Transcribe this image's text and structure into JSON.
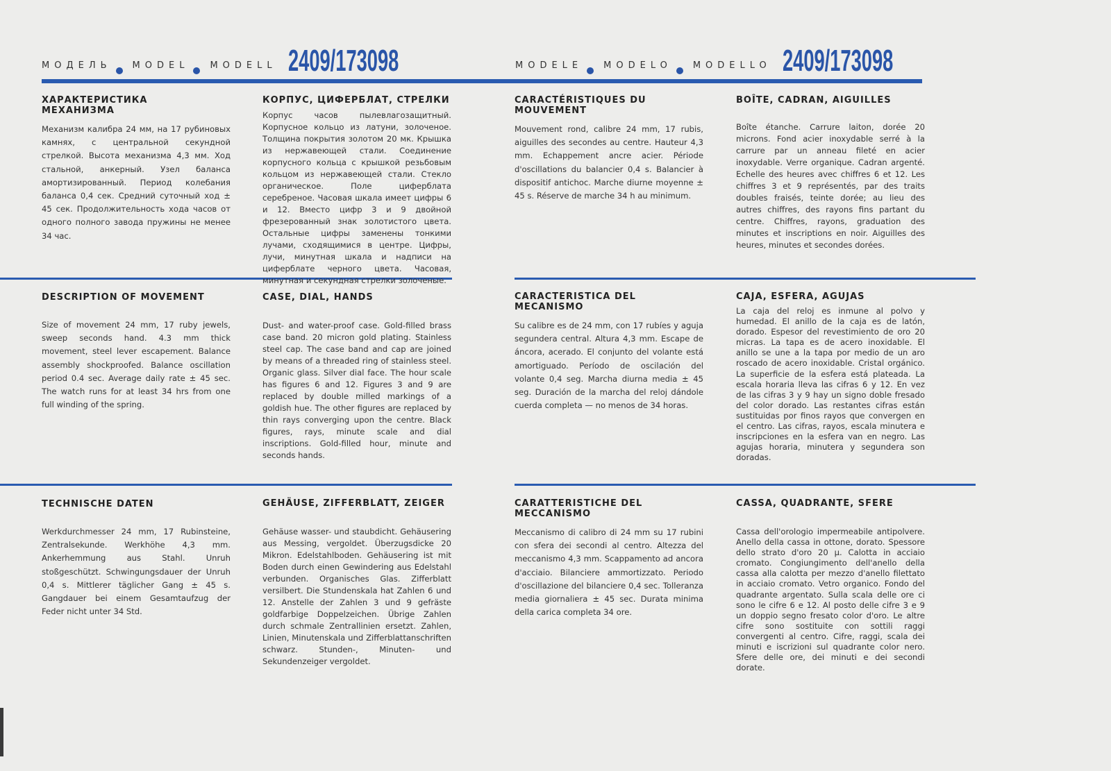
{
  "header_left": {
    "label_parts": [
      "МОДЕЛЬ",
      "MODEL",
      "MODELL"
    ],
    "number": "2409/173098"
  },
  "header_right": {
    "label_parts": [
      "MODELE",
      "MODELO",
      "MODELLO"
    ],
    "number": "2409/173098"
  },
  "accent_color": "#2a55a8",
  "sections": {
    "ru_movement": {
      "title": "ХАРАКТЕРИСТИКА МЕХАНИЗМА",
      "text": "Механизм калибра 24 мм, на 17 рубиновых камнях, с центральной секундной стрелкой. Высота механизма 4,3 мм. Ход стальной, анкерный. Узел баланса амортизированный. Период колебания баланса 0,4 сек. Средний суточный ход ± 45 сек. Продолжительность хода часов от одного полного завода пружины не менее 34 час."
    },
    "ru_case": {
      "title": "КОРПУС, ЦИФЕРБЛАТ, СТРЕЛКИ",
      "text": "Корпус часов пылевлагозащитный. Корпусное кольцо из латуни, золоченое. Толщина покрытия золотом 20 мк. Крышка из нержавеющей стали. Соединение корпусного кольца с крышкой резьбовым кольцом из нержавеющей стали. Стекло органическое. Поле циферблата серебреное. Часовая шкала имеет цифры 6 и 12. Вместо цифр 3 и 9 двойной фрезерованный знак золотистого цвета. Остальные цифры заменены тонкими лучами, сходящимися в центре. Цифры, лучи, минутная шкала и надписи на циферблате черного цвета. Часовая, минутная и секундная стрелки золоченые."
    },
    "fr_movement": {
      "title": "CARACTÉRISTIQUES DU MOUVEMENT",
      "text": "Mouvement rond, calibre 24 mm, 17 rubis, aiguilles des secondes au centre. Hauteur 4,3 mm. Echappement ancre acier. Période d'oscillations du balancier 0,4 s. Balancier à dispositif antichoc. Marche diurne moyenne ± 45 s. Réserve de marche 34 h au minimum."
    },
    "fr_case": {
      "title": "BOÎTE, CADRAN, AIGUILLES",
      "text": "Boîte étanche. Carrure laiton, dorée 20 microns. Fond acier inoxydable serré à la carrure par un anneau fileté en acier inoxydable. Verre organique. Cadran argenté. Echelle des heures avec chiffres 6 et 12. Les chiffres 3 et 9 représentés, par des traits doubles fraisés, teinte dorée; au lieu des autres chiffres, des rayons fins partant du centre. Chiffres, rayons, graduation des minutes et inscriptions en noir. Aiguilles des heures, minutes et secondes dorées."
    },
    "en_movement": {
      "title": "DESCRIPTION OF MOVEMENT",
      "text": "Size of movement 24 mm, 17 ruby jewels, sweep seconds hand. 4.3 mm thick movement, steel lever escapement. Balance assembly shockproofed. Balance oscillation period 0.4 sec. Average daily rate ± 45 sec. The watch runs for at least 34 hrs from one full winding of the spring."
    },
    "en_case": {
      "title": "CASE, DIAL, HANDS",
      "text": "Dust- and water-proof case. Gold-filled brass case band. 20 micron gold plating. Stainless steel cap. The case band and cap are joined by means of a threaded ring of stainless steel. Organic glass. Silver dial face. The hour scale has figures 6 and 12. Figures 3 and 9 are replaced by double milled markings of a goldish hue. The other figures are replaced by thin rays converging upon the centre. Black figures, rays, minute scale and dial inscriptions. Gold-filled hour, minute and seconds hands."
    },
    "es_movement": {
      "title": "CARACTERISTICA DEL MECANISMO",
      "text": "Su calibre es de 24 mm, con 17 rubíes y aguja segundera central. Altura 4,3 mm. Escape de áncora, acerado. El conjunto del volante está amortiguado. Período de oscilación del volante 0,4 seg. Marcha diurna media ± 45 seg. Duración de la marcha del reloj dándole cuerda completa — no menos de 34 horas."
    },
    "es_case": {
      "title": "CAJA, ESFERA, AGUJAS",
      "text": "La caja del reloj es inmune al polvo y humedad. El anillo de la caja es de latón, dorado. Espesor del revestimiento de oro 20 micras. La tapa es de acero inoxidable. El anillo se une a la tapa por medio de un aro roscado de acero inoxidable. Cristal orgánico. La superficie de la esfera está plateada. La escala horaria lleva las cifras 6 y 12. En vez de las cifras 3 y 9 hay un signo doble fresado del color dorado. Las restantes cifras están sustituidas por finos rayos que convergen en el centro. Las cifras, rayos, escala minutera e inscripciones en la esfera van en negro. Las agujas horaria, minutera y segundera son doradas."
    },
    "de_movement": {
      "title": "TECHNISCHE DATEN",
      "text": "Werkdurchmesser 24 mm, 17 Rubinsteine, Zentralsekunde. Werkhöhe 4,3 mm. Ankerhemmung aus Stahl. Unruh stoßgeschützt. Schwingungsdauer der Unruh 0,4 s. Mittlerer täglicher Gang ± 45 s. Gangdauer bei einem Gesamtaufzug der Feder nicht unter 34 Std."
    },
    "de_case": {
      "title": "GEHÄUSE, ZIFFERBLATT, ZEIGER",
      "text": "Gehäuse wasser- und staubdicht. Gehäusering aus Messing, vergoldet. Überzugsdicke 20 Mikron. Edelstahlboden. Gehäusering ist mit Boden durch einen Gewindering aus Edelstahl verbunden. Organisches Glas. Zifferblatt versilbert. Die Stundenskala hat Zahlen 6 und 12. Anstelle der Zahlen 3 und 9 gefräste goldfarbige Doppelzeichen. Übrige Zahlen durch schmale Zentrallinien ersetzt. Zahlen, Linien, Minutenskala und Zifferblattanschriften schwarz. Stunden-, Minuten- und Sekundenzeiger vergoldet."
    },
    "it_movement": {
      "title": "CARATTERISTICHE DEL MECCANISMO",
      "text": "Meccanismo di calibro di 24 mm su 17 rubini con sfera dei secondi al centro. Altezza del meccanismo 4,3 mm. Scappamento ad ancora d'acciaio. Bilanciere ammortizzato. Periodo d'oscillazione del bilanciere 0,4 sec. Tolleranza media giornaliera ± 45 sec. Durata minima della carica completa 34 ore."
    },
    "it_case": {
      "title": "CASSA, QUADRANTE, SFERE",
      "text": "Cassa dell'orologio impermeabile antipolvere. Anello della cassa in ottone, dorato. Spessore dello strato d'oro 20 μ. Calotta in acciaio cromato. Congiungimento dell'anello della cassa alla calotta per mezzo d'anello filettato in acciaio cromato. Vetro organico. Fondo del quadrante argentato. Sulla scala delle ore ci sono le cifre 6 e 12. Al posto delle cifre 3 e 9 un doppio segno fresato color d'oro. Le altre cifre sono sostituite con sottili raggi convergenti al centro. Cifre, raggi, scala dei minuti e iscrizioni sul quadrante color nero. Sfere delle ore, dei minuti e dei secondi dorate."
    }
  }
}
